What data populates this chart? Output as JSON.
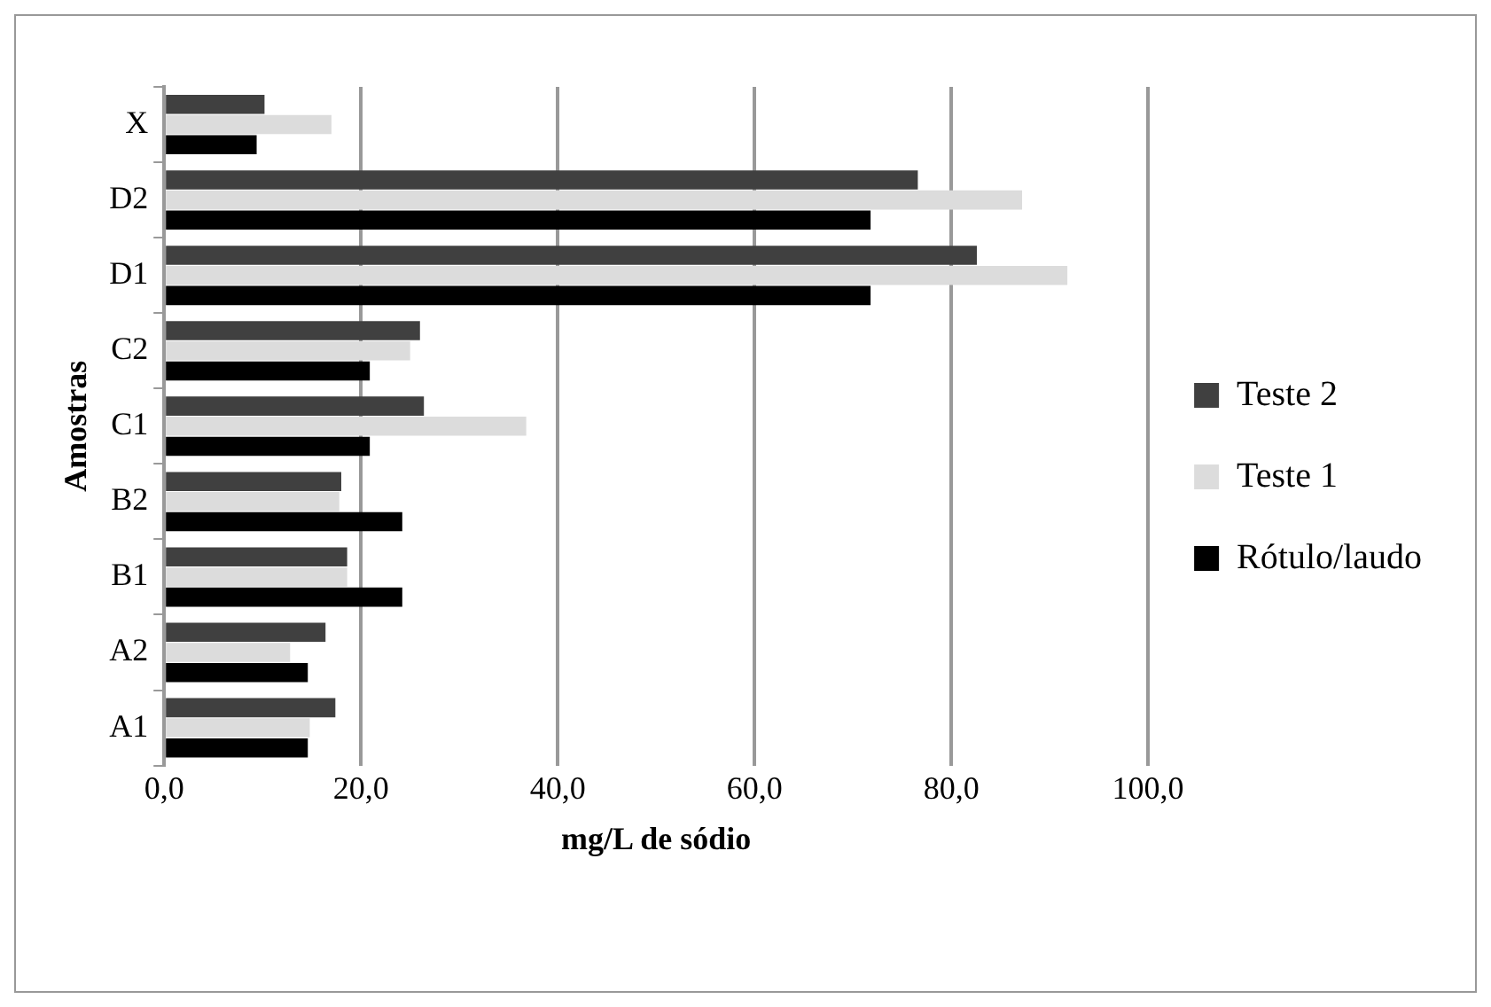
{
  "chart_data": {
    "type": "bar",
    "orientation": "horizontal",
    "categories": [
      "X",
      "D2",
      "D1",
      "C2",
      "C1",
      "B2",
      "B1",
      "A2",
      "A1"
    ],
    "series": [
      {
        "name": "Teste 2",
        "color": "#404040",
        "values": [
          10.2,
          76.6,
          82.6,
          26.0,
          26.4,
          18.0,
          18.6,
          16.4,
          17.4
        ]
      },
      {
        "name": "Teste 1",
        "color": "#dcdcdc",
        "values": [
          17.0,
          87.2,
          91.8,
          25.0,
          36.8,
          17.8,
          18.6,
          12.8,
          14.8
        ]
      },
      {
        "name": "Rótulo/laudo",
        "color": "#000000",
        "values": [
          9.4,
          71.8,
          71.8,
          20.9,
          20.9,
          24.2,
          24.2,
          14.6,
          14.6
        ]
      }
    ],
    "xlim": [
      0,
      100
    ],
    "xticks": [
      {
        "value": 0,
        "label": "0,0"
      },
      {
        "value": 20,
        "label": "20,0"
      },
      {
        "value": 40,
        "label": "40,0"
      },
      {
        "value": 60,
        "label": "60,0"
      },
      {
        "value": 80,
        "label": "80,0"
      },
      {
        "value": 100,
        "label": "100,0"
      }
    ],
    "xlabel": "mg/L de sódio",
    "ylabel": "Amostras",
    "grid": "x",
    "legend": "right"
  }
}
